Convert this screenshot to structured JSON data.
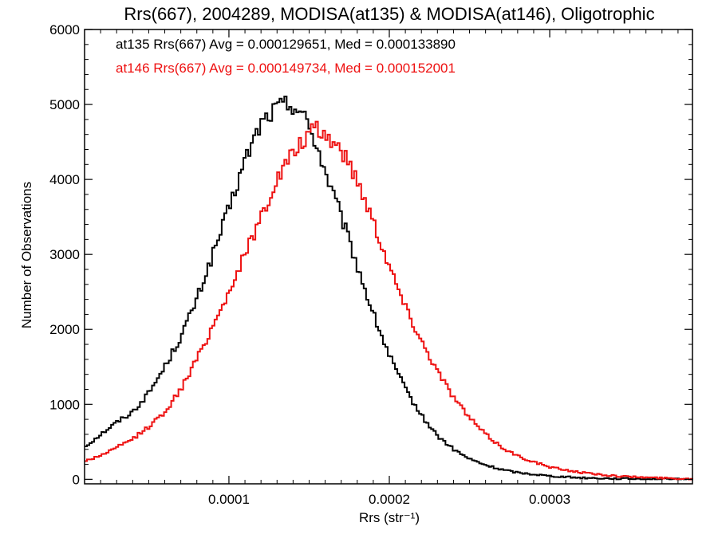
{
  "chart_data": {
    "type": "line",
    "step": true,
    "title": "Rrs(667), 2004289, MODISA(at135) & MODISA(at146), Oligotrophic",
    "xlabel": "Rrs (str⁻¹)",
    "ylabel": "Number of Observations",
    "xlim": [
      1e-05,
      0.000389
    ],
    "ylim": [
      -60,
      6000
    ],
    "x_ticks": [
      0.0001,
      0.0002,
      0.0003
    ],
    "x_tick_labels": [
      "0.0001",
      "0.0002",
      "0.0003"
    ],
    "y_ticks": [
      0,
      1000,
      2000,
      3000,
      4000,
      5000,
      6000
    ],
    "y_tick_labels": [
      "0",
      "1000",
      "2000",
      "3000",
      "4000",
      "5000",
      "6000"
    ],
    "legend_position": "top-left",
    "legend": [
      {
        "label": "at135 Rrs(667) Avg = 0.000129651, Med = 0.000133890",
        "color": "#000000"
      },
      {
        "label": "at146 Rrs(667) Avg = 0.000149734, Med = 0.000152001",
        "color": "#ee1111"
      }
    ],
    "series": [
      {
        "color": "#000000",
        "x": [
          1e-05,
          2e-05,
          3e-05,
          4e-05,
          5e-05,
          6e-05,
          7e-05,
          8e-05,
          9e-05,
          0.0001,
          0.00011,
          0.00012,
          0.00013,
          0.000135,
          0.00014,
          0.000145,
          0.00015,
          0.000155,
          0.00016,
          0.00017,
          0.00018,
          0.00019,
          0.0002,
          0.00021,
          0.00022,
          0.00023,
          0.00024,
          0.00025,
          0.00026,
          0.00027,
          0.00028,
          0.0003,
          0.00032,
          0.00034,
          0.00036,
          0.00038,
          0.000389
        ],
        "values": [
          430,
          600,
          760,
          900,
          1150,
          1500,
          1900,
          2400,
          3000,
          3600,
          4250,
          4750,
          4960,
          5000,
          5000,
          4900,
          4700,
          4450,
          4100,
          3500,
          2850,
          2200,
          1650,
          1200,
          850,
          580,
          400,
          270,
          190,
          130,
          90,
          45,
          20,
          10,
          5,
          2,
          1
        ]
      },
      {
        "color": "#ee1111",
        "x": [
          1e-05,
          2e-05,
          3e-05,
          4e-05,
          5e-05,
          6e-05,
          7e-05,
          8e-05,
          9e-05,
          0.0001,
          0.00011,
          0.00012,
          0.00013,
          0.00014,
          0.00015,
          0.000155,
          0.00016,
          0.00017,
          0.00018,
          0.00019,
          0.0002,
          0.00021,
          0.00022,
          0.00023,
          0.00024,
          0.00025,
          0.00026,
          0.00027,
          0.00028,
          0.0003,
          0.00032,
          0.00034,
          0.00036,
          0.00038,
          0.000389
        ],
        "values": [
          240,
          320,
          420,
          540,
          700,
          900,
          1200,
          1600,
          2050,
          2500,
          3000,
          3500,
          4000,
          4350,
          4600,
          4650,
          4600,
          4400,
          4000,
          3450,
          2850,
          2300,
          1850,
          1450,
          1100,
          820,
          600,
          430,
          310,
          160,
          90,
          45,
          25,
          10,
          5
        ]
      }
    ]
  }
}
